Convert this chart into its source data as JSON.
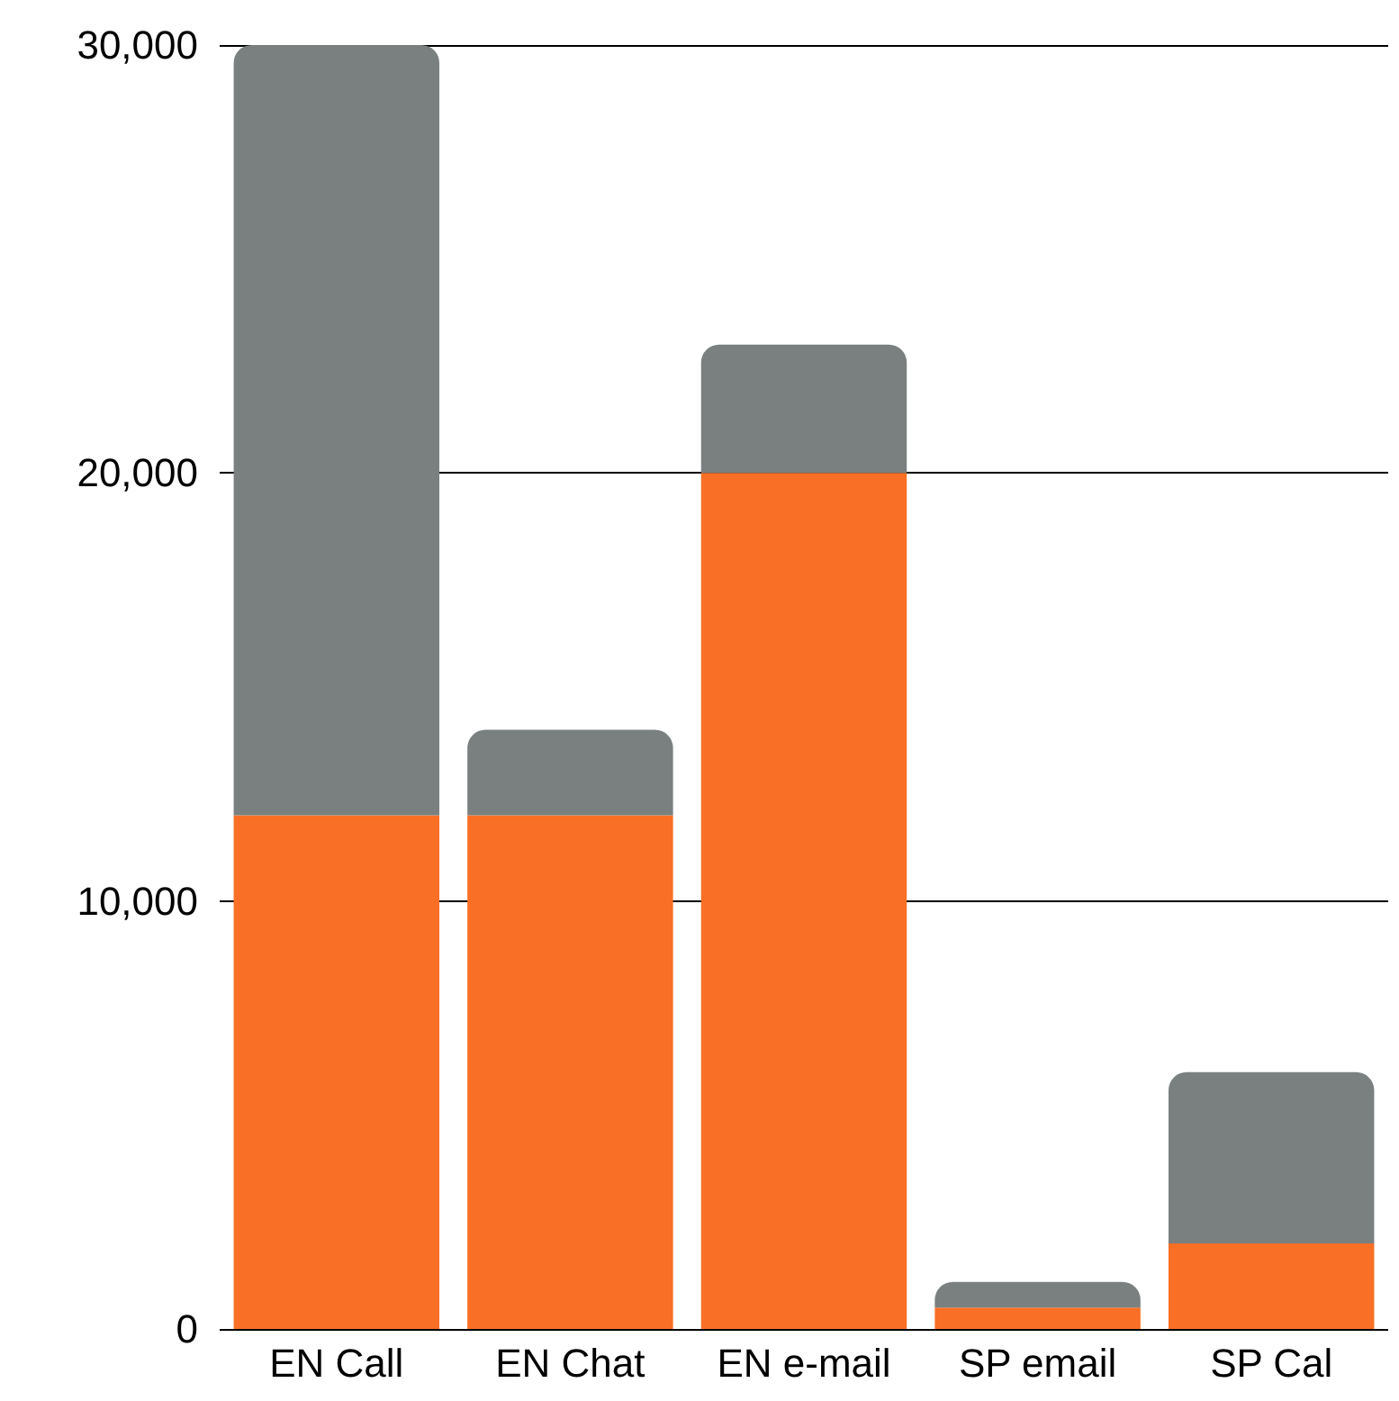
{
  "chart_data": {
    "type": "bar",
    "stacked": true,
    "categories": [
      "EN Call",
      "EN Chat",
      "EN e-mail",
      "SP email",
      "SP Cal"
    ],
    "series": [
      {
        "color": "#f96f25",
        "values": [
          12000,
          12000,
          20000,
          500,
          2000
        ]
      },
      {
        "color": "#7a8080",
        "values": [
          18000,
          2000,
          3000,
          600,
          4000
        ]
      }
    ],
    "ylim": [
      0,
      30000
    ],
    "yticks": [
      {
        "value": 0,
        "label": "0"
      },
      {
        "value": 10000,
        "label": "10,000"
      },
      {
        "value": 20000,
        "label": "20,000"
      },
      {
        "value": 30000,
        "label": "30,000"
      }
    ],
    "grid": "y"
  }
}
